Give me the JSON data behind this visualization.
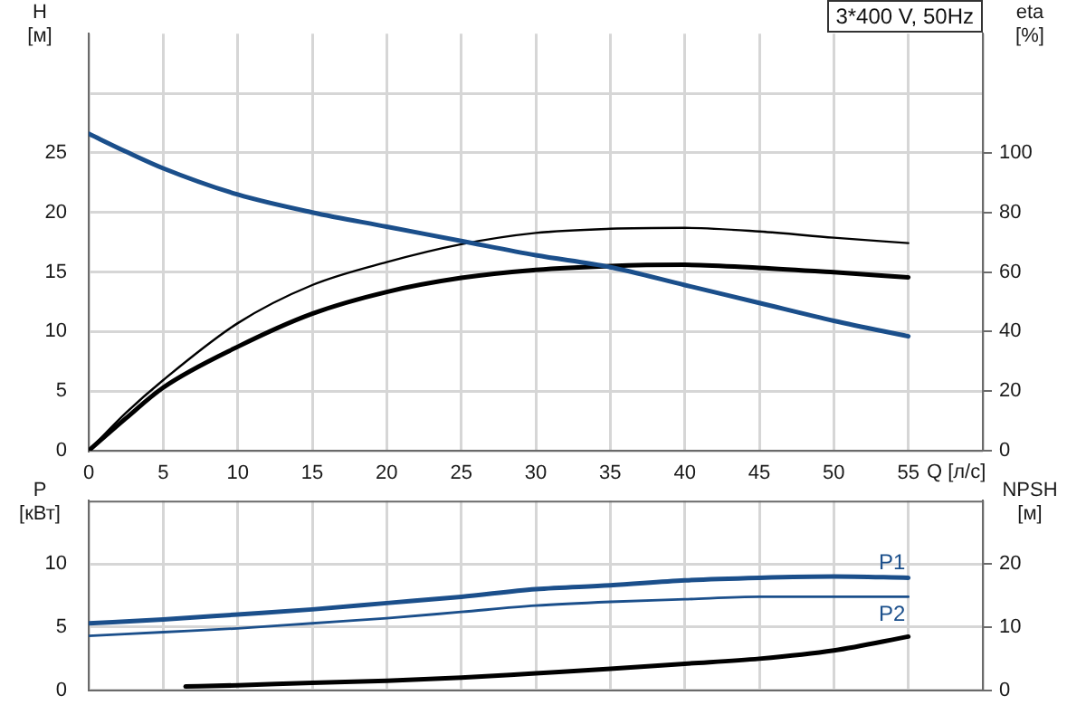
{
  "chart_data": [
    {
      "type": "line",
      "title": "3*400 V, 50Hz",
      "xlabel": "Q [л/с]",
      "ylabel": "H [м]",
      "y2label": "eta [%]",
      "xlim": [
        0,
        60
      ],
      "xticks": [
        0,
        5,
        10,
        15,
        20,
        25,
        30,
        35,
        40,
        45,
        50,
        55,
        {
          "value": 60,
          "label": null
        }
      ],
      "ylim": [
        0,
        35
      ],
      "yticks": [
        0,
        5,
        10,
        15,
        20,
        25,
        {
          "value": 30,
          "label": null
        }
      ],
      "y2lim": [
        0,
        140
      ],
      "y2ticks": [
        0,
        20,
        40,
        60,
        80,
        100
      ],
      "grid": true,
      "legend": false,
      "marker": "none",
      "line_style": "solid",
      "x": [
        0,
        2.5,
        5,
        10,
        15,
        20,
        25,
        30,
        35,
        40,
        45,
        50,
        55
      ],
      "series": [
        {
          "color": "#1b4f8b",
          "values": [
            26.6,
            25.1,
            23.7,
            21.5,
            20.0,
            18.8,
            17.6,
            16.4,
            15.4,
            13.9,
            12.4,
            10.9,
            9.6
          ]
        },
        {
          "color": "#000000",
          "axis": "y2",
          "values": [
            0,
            12.7,
            23.7,
            42.8,
            55.6,
            63.3,
            69.3,
            73.1,
            74.5,
            74.8,
            73.6,
            71.5,
            69.7
          ]
        },
        {
          "color": "#000000",
          "axis": "y2",
          "values": [
            0,
            10.9,
            21.2,
            34.9,
            46.0,
            53.3,
            58.0,
            60.7,
            62.0,
            62.4,
            61.4,
            59.9,
            58.2
          ]
        }
      ]
    },
    {
      "type": "line",
      "ylabel": "P [кВт]",
      "y2label": "NPSH [м]",
      "xlim": [
        0,
        60
      ],
      "xticks": [
        0,
        5,
        10,
        15,
        20,
        25,
        30,
        35,
        40,
        45,
        50,
        55,
        {
          "value": 60,
          "label": null
        }
      ],
      "ylim": [
        0,
        15
      ],
      "yticks": [
        0,
        5,
        10
      ],
      "y2lim": [
        0,
        30
      ],
      "y2ticks": [
        0,
        10,
        20
      ],
      "tick_labels": "y",
      "grid": true,
      "legend": false,
      "marker": "none",
      "line_style": "solid",
      "x": [
        0,
        5,
        10,
        15,
        20,
        25,
        30,
        35,
        40,
        45,
        50,
        55
      ],
      "series": [
        {
          "name": "P1",
          "color": "#1b4f8b",
          "values": [
            5.3,
            5.6,
            6.0,
            6.4,
            6.9,
            7.4,
            8.0,
            8.3,
            8.7,
            8.9,
            9.0,
            8.9
          ]
        },
        {
          "name": "P2",
          "color": "#1b4f8b",
          "values": [
            4.3,
            4.6,
            4.9,
            5.3,
            5.7,
            6.2,
            6.7,
            7.0,
            7.2,
            7.4,
            7.4,
            7.4
          ]
        },
        {
          "color": "#000000",
          "axis": "y2",
          "x": [
            6.5,
            10,
            15,
            20,
            25,
            30,
            35,
            40,
            45,
            50,
            55
          ],
          "values": [
            0.6,
            0.8,
            1.2,
            1.5,
            2.0,
            2.7,
            3.4,
            4.2,
            5.0,
            6.3,
            8.5
          ]
        }
      ]
    }
  ]
}
